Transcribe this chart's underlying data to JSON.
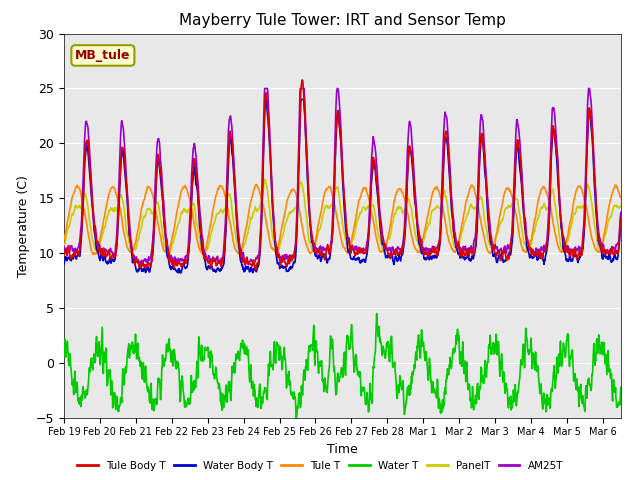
{
  "title": "Mayberry Tule Tower: IRT and Sensor Temp",
  "xlabel": "Time",
  "ylabel": "Temperature (C)",
  "ylim": [
    -5,
    30
  ],
  "xlim_days": 15.5,
  "background_color": "#ffffff",
  "plot_bg_color": "#e8e8e8",
  "grid_color": "#ffffff",
  "annotation_text": "MB_tule",
  "annotation_bg": "#ffffcc",
  "annotation_border": "#999900",
  "series": [
    {
      "label": "Tule Body T",
      "color": "#dd0000",
      "lw": 1.2
    },
    {
      "label": "Water Body T",
      "color": "#0000cc",
      "lw": 1.2
    },
    {
      "label": "Tule T",
      "color": "#ff8800",
      "lw": 1.2
    },
    {
      "label": "Water T",
      "color": "#00cc00",
      "lw": 1.2
    },
    {
      "label": "PanelT",
      "color": "#cccc00",
      "lw": 1.2
    },
    {
      "label": "AM25T",
      "color": "#9900cc",
      "lw": 1.2
    }
  ],
  "xtick_labels": [
    "Feb 19",
    "Feb 20",
    "Feb 21",
    "Feb 22",
    "Feb 23",
    "Feb 24",
    "Feb 25",
    "Feb 26",
    "Feb 27",
    "Feb 28",
    "Mar 1",
    "Mar 2",
    "Mar 3",
    "Mar 4",
    "Mar 5",
    "Mar 6"
  ],
  "xtick_positions": [
    0,
    1,
    2,
    3,
    4,
    5,
    6,
    7,
    8,
    9,
    10,
    11,
    12,
    13,
    14,
    15
  ],
  "ytick_positions": [
    -5,
    0,
    5,
    10,
    15,
    20,
    25,
    30
  ],
  "legend_ncol": 6
}
